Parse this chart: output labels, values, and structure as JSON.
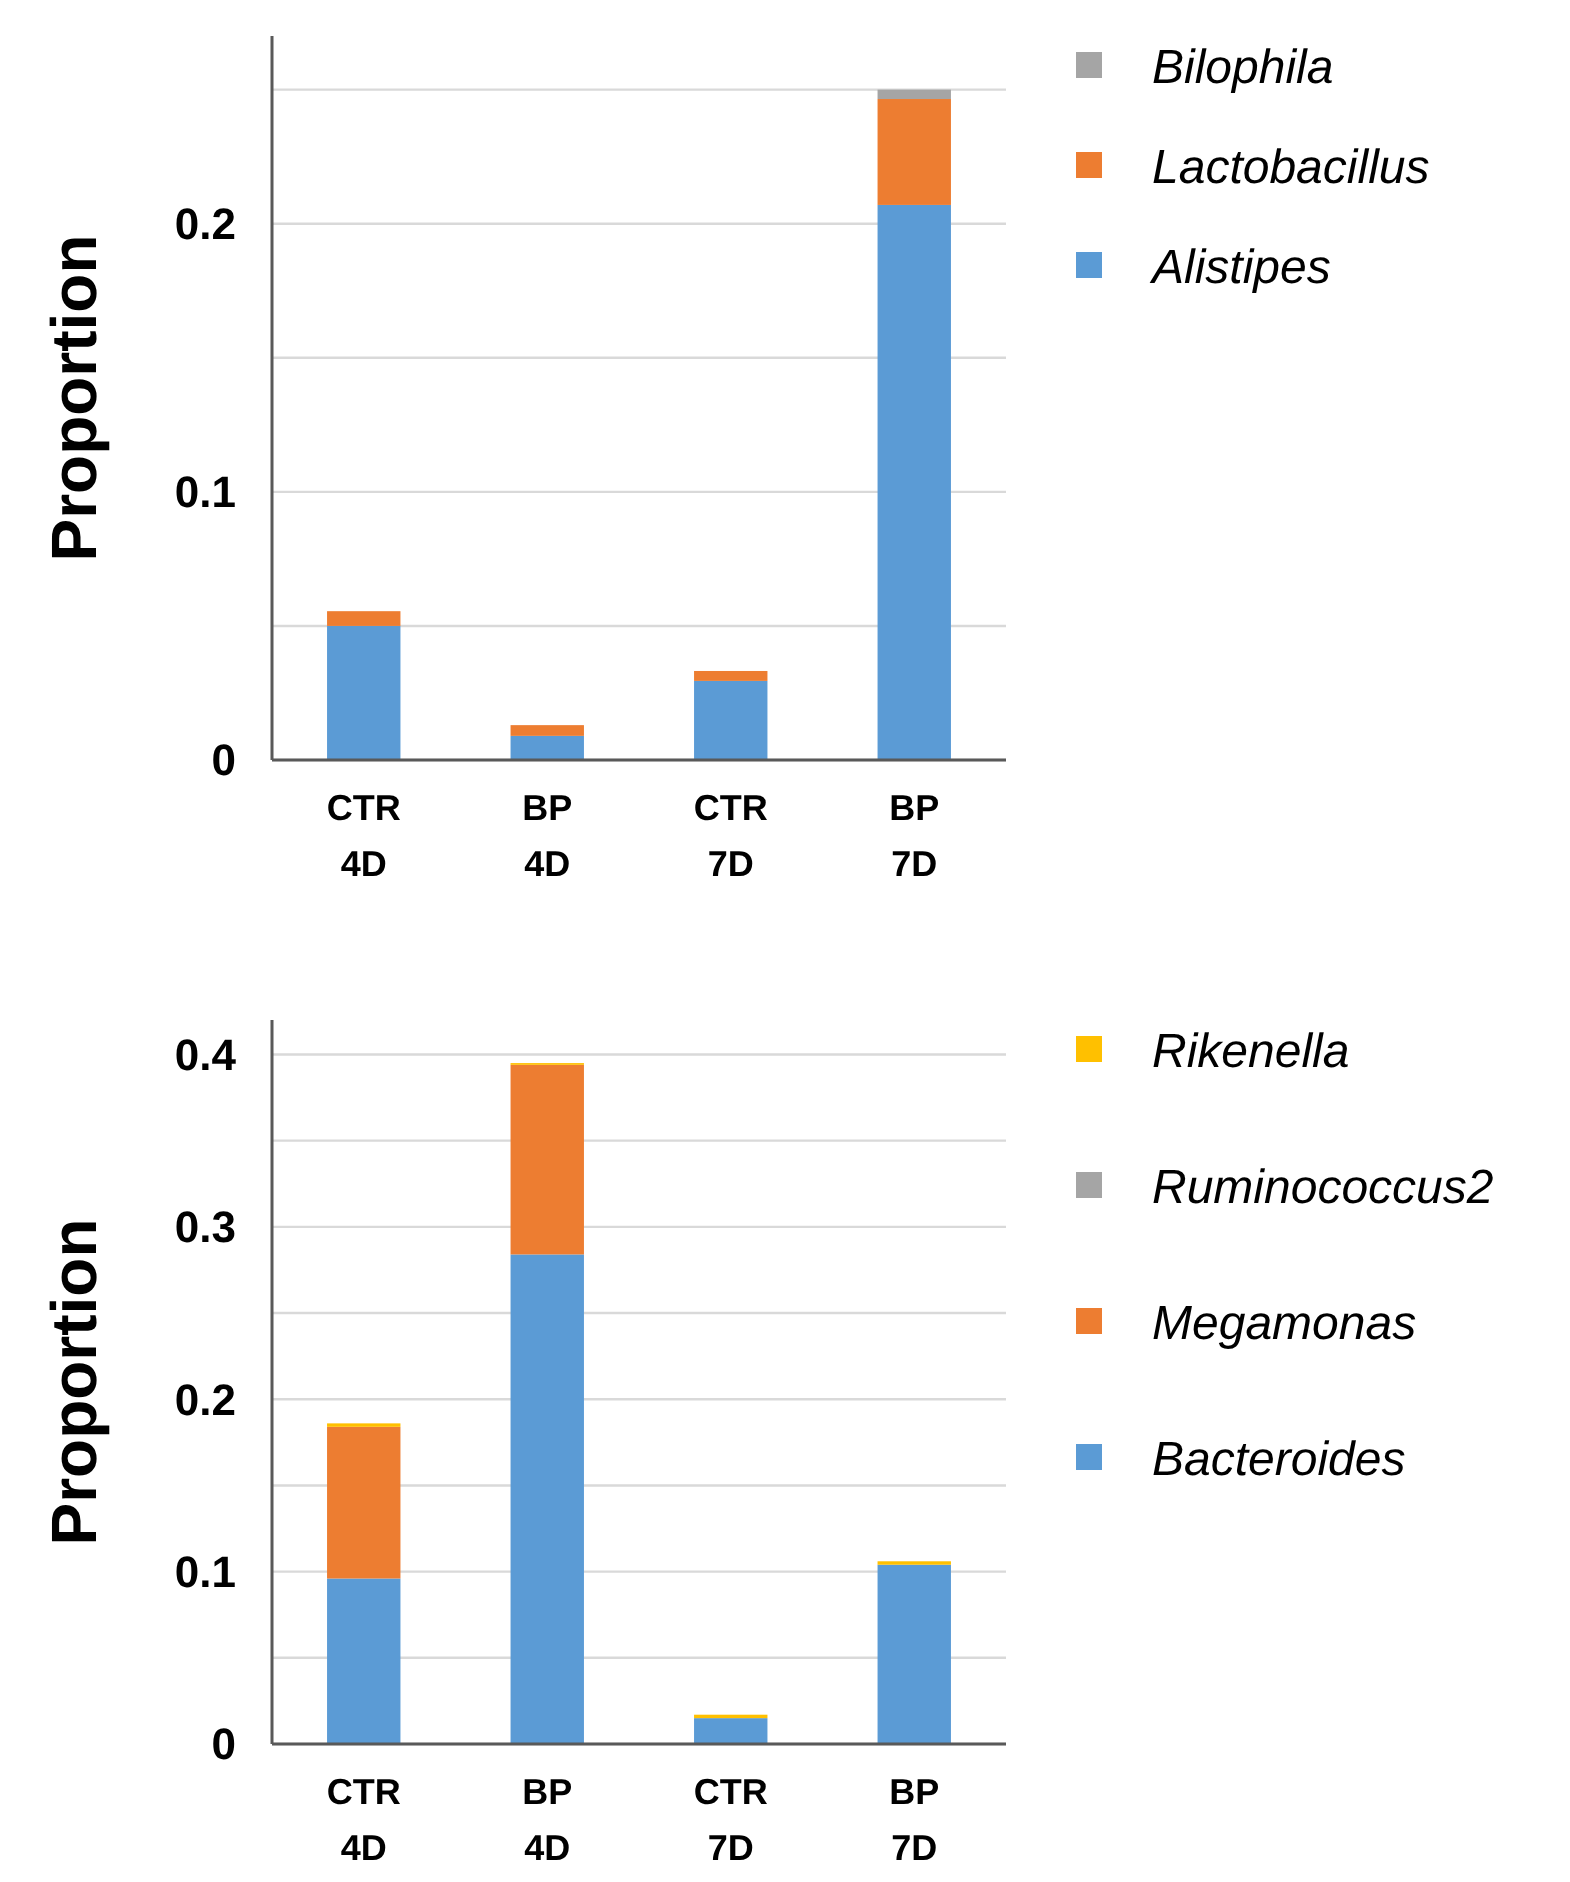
{
  "chart_data": [
    {
      "type": "bar",
      "ylabel": "Proportion",
      "categories": [
        "CTR\n4D",
        "BP\n4D",
        "CTR\n7D",
        "BP\n7D"
      ],
      "stacked": true,
      "grid": "y",
      "legend": "right",
      "ylim": [
        0,
        0.27
      ],
      "yticks": [
        0,
        {
          "value": 0.05,
          "label": null
        },
        0.1,
        {
          "value": 0.15,
          "label": null
        },
        0.2,
        {
          "value": 0.25,
          "label": null
        }
      ],
      "series": [
        {
          "name": "Alistipes",
          "color": "#5b9bd5",
          "values": [
            0.05,
            0.009,
            0.0295,
            0.207
          ]
        },
        {
          "name": "Lactobacillus",
          "color": "#ed7d31",
          "values": [
            0.0055,
            0.004,
            0.0037,
            0.0395
          ]
        },
        {
          "name": "Bilophila",
          "color": "#a5a5a5",
          "values": [
            0,
            0,
            0,
            0.0035
          ]
        }
      ]
    },
    {
      "type": "bar",
      "ylabel": "Proportion",
      "categories": [
        "CTR\n4D",
        "BP\n4D",
        "CTR\n7D",
        "BP\n7D"
      ],
      "stacked": true,
      "grid": "y",
      "legend": "right",
      "ylim": [
        0,
        0.42
      ],
      "yticks": [
        0,
        {
          "value": 0.05,
          "label": null
        },
        0.1,
        {
          "value": 0.15,
          "label": null
        },
        0.2,
        {
          "value": 0.25,
          "label": null
        },
        0.3,
        {
          "value": 0.35,
          "label": null
        },
        0.4
      ],
      "series": [
        {
          "name": "Bacteroides",
          "color": "#5b9bd5",
          "values": [
            0.096,
            0.284,
            0.015,
            0.104
          ]
        },
        {
          "name": "Megamonas",
          "color": "#ed7d31",
          "values": [
            0.088,
            0.11,
            0,
            0
          ]
        },
        {
          "name": "Ruminococcus2",
          "color": "#a5a5a5",
          "values": [
            0,
            0,
            0,
            0
          ]
        },
        {
          "name": "Rikenella",
          "color": "#ffc000",
          "values": [
            0.002,
            0.001,
            0.002,
            0.002
          ]
        }
      ]
    }
  ]
}
